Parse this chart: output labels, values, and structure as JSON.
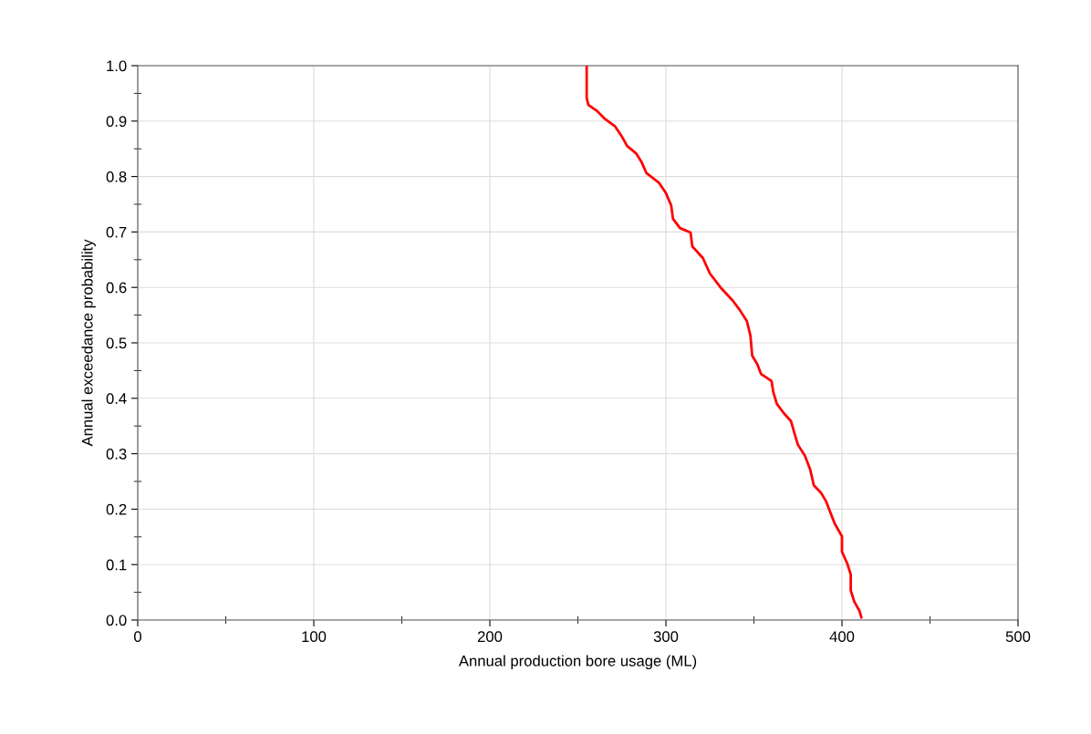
{
  "chart_data": {
    "type": "line",
    "xlabel": "Annual production bore usage (ML)",
    "ylabel": "Annual exceedance probability",
    "xlim": [
      0,
      500
    ],
    "xticks": [
      0,
      100,
      200,
      300,
      400,
      500
    ],
    "ylim": [
      0.0,
      1.0
    ],
    "yticks": [
      {
        "value": 0.0,
        "label": "0.0"
      },
      {
        "value": 0.1,
        "label": "0.1"
      },
      {
        "value": 0.2,
        "label": "0.2"
      },
      {
        "value": 0.3,
        "label": "0.3"
      },
      {
        "value": 0.4,
        "label": "0.4"
      },
      {
        "value": 0.5,
        "label": "0.5"
      },
      {
        "value": 0.6,
        "label": "0.6"
      },
      {
        "value": 0.7,
        "label": "0.7"
      },
      {
        "value": 0.8,
        "label": "0.8"
      },
      {
        "value": 0.9,
        "label": "0.9"
      },
      {
        "value": 1.0,
        "label": "1.0"
      }
    ],
    "grid": true,
    "legend": false,
    "marker": "none",
    "line_style": "solid",
    "series": [
      {
        "color": "#ff0000",
        "x": [
          255,
          255,
          256,
          261,
          265,
          271,
          275,
          278,
          283,
          286,
          289,
          296,
          300,
          303,
          304,
          308,
          314,
          315,
          321,
          325,
          331,
          338,
          342,
          346,
          348,
          349,
          352,
          354,
          360,
          361,
          363,
          367,
          371,
          373,
          375,
          379,
          382,
          384,
          388,
          391,
          394,
          396,
          400,
          400,
          403,
          405,
          405,
          407,
          410,
          411
        ],
        "values": [
          1.0,
          0.941,
          0.929,
          0.918,
          0.905,
          0.891,
          0.872,
          0.855,
          0.842,
          0.827,
          0.806,
          0.789,
          0.77,
          0.748,
          0.724,
          0.707,
          0.699,
          0.674,
          0.653,
          0.625,
          0.6,
          0.576,
          0.559,
          0.539,
          0.513,
          0.477,
          0.461,
          0.444,
          0.431,
          0.411,
          0.39,
          0.373,
          0.359,
          0.337,
          0.316,
          0.296,
          0.271,
          0.243,
          0.23,
          0.214,
          0.189,
          0.173,
          0.151,
          0.123,
          0.102,
          0.082,
          0.053,
          0.033,
          0.016,
          0.005
        ]
      }
    ]
  }
}
